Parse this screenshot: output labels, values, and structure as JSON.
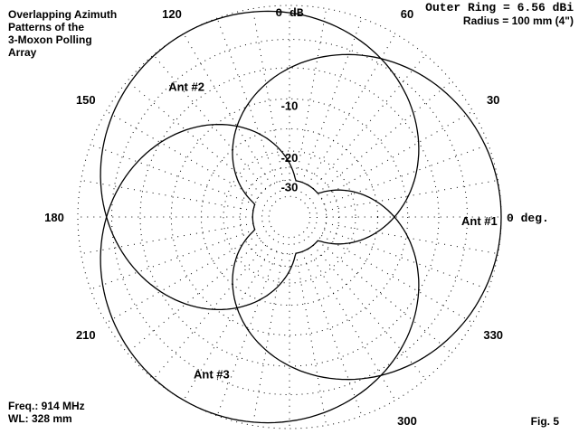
{
  "figure": {
    "title_lines": [
      "Overlapping Azimuth",
      "Patterns of the",
      "3-Moxon Polling",
      "Array"
    ],
    "outer_ring": "Outer Ring = 6.56 dBi",
    "radius": "Radius = 100 mm (4\")",
    "freq": "Freq.: 914 MHz",
    "wl": "WL: 328 mm",
    "fig_label": "Fig. 5"
  },
  "chart_data": {
    "type": "polar",
    "title": "Overlapping Azimuth Patterns of the 3-Moxon Polling Array",
    "outer_ring_gain_dbi": 6.56,
    "radial_rings_db": [
      0,
      -10,
      -20,
      -30
    ],
    "radial_labels": [
      "0 dB",
      "-10",
      "-20",
      "-30"
    ],
    "angle_labels": [
      {
        "deg": 0,
        "text": "0 deg."
      },
      {
        "deg": 30,
        "text": "30"
      },
      {
        "deg": 60,
        "text": "60"
      },
      {
        "deg": 120,
        "text": "120"
      },
      {
        "deg": 150,
        "text": "150"
      },
      {
        "deg": 180,
        "text": "180"
      },
      {
        "deg": 210,
        "text": "210"
      },
      {
        "deg": 300,
        "text": "300"
      },
      {
        "deg": 330,
        "text": "330"
      }
    ],
    "grid": true,
    "series": [
      {
        "name": "Ant #1",
        "beam_azimuth_deg": 0,
        "pattern": "cardioid",
        "back_db": -30
      },
      {
        "name": "Ant #2",
        "beam_azimuth_deg": 120,
        "pattern": "cardioid",
        "back_db": -30
      },
      {
        "name": "Ant #3",
        "beam_azimuth_deg": 240,
        "pattern": "cardioid",
        "back_db": -30
      }
    ]
  }
}
